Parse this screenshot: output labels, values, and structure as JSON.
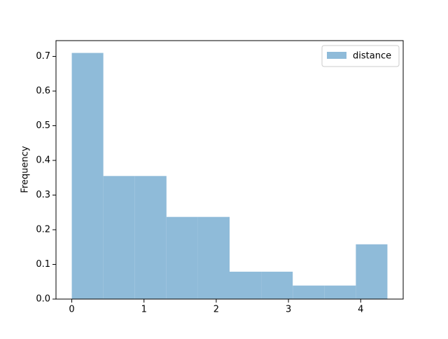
{
  "chart_data": {
    "type": "histogram",
    "ylabel": "Frequency",
    "bins": [
      0,
      0.437,
      0.874,
      1.311,
      1.748,
      2.185,
      2.622,
      3.059,
      3.496,
      3.933,
      4.37
    ],
    "series": [
      {
        "name": "distance",
        "color": "#8fbbd9",
        "values": [
          0.71,
          0.355,
          0.355,
          0.237,
          0.237,
          0.079,
          0.079,
          0.039,
          0.039,
          0.158
        ]
      }
    ],
    "xlim": [
      -0.2185,
      4.5885
    ],
    "xticks": [
      0,
      1,
      2,
      3,
      4
    ],
    "ylim": [
      0,
      0.7455
    ],
    "yticks": [
      {
        "value": 0,
        "label": "0.0"
      },
      0.1,
      0.2,
      0.3,
      0.4,
      0.5,
      0.6,
      0.7
    ],
    "legend": "upper right"
  }
}
